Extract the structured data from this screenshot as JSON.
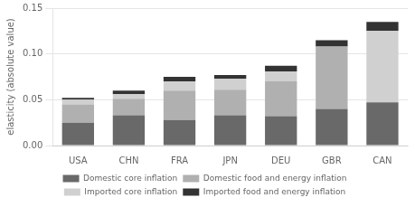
{
  "chart_data": {
    "type": "bar",
    "stacked": true,
    "categories": [
      "USA",
      "CHN",
      "FRA",
      "JPN",
      "DEU",
      "GBR",
      "CAN"
    ],
    "series": [
      {
        "name": "Domestic core inflation",
        "color": "#696969",
        "values": [
          0.025,
          0.033,
          0.028,
          0.033,
          0.032,
          0.04,
          0.047
        ]
      },
      {
        "name": "Domestic food and energy inflation",
        "color": "#b0b0b0",
        "values": [
          0.02,
          0.018,
          0.032,
          0.028,
          0.038,
          0.068,
          0.0
        ]
      },
      {
        "name": "Imported core inflation",
        "color": "#d0d0d0",
        "values": [
          0.005,
          0.005,
          0.01,
          0.012,
          0.011,
          0.0,
          0.078
        ]
      },
      {
        "name": "Imported food and energy inflation",
        "color": "#333333",
        "values": [
          0.002,
          0.004,
          0.005,
          0.004,
          0.006,
          0.007,
          0.01
        ]
      }
    ],
    "ylabel": "elasticity (absolute value)",
    "ylim": [
      0,
      0.15
    ],
    "yticks": [
      {
        "value": 0,
        "label": "0.00"
      },
      0.05,
      {
        "value": 0.1,
        "label": "0.10"
      },
      0.15
    ],
    "grid": true,
    "legend": "bottom"
  }
}
